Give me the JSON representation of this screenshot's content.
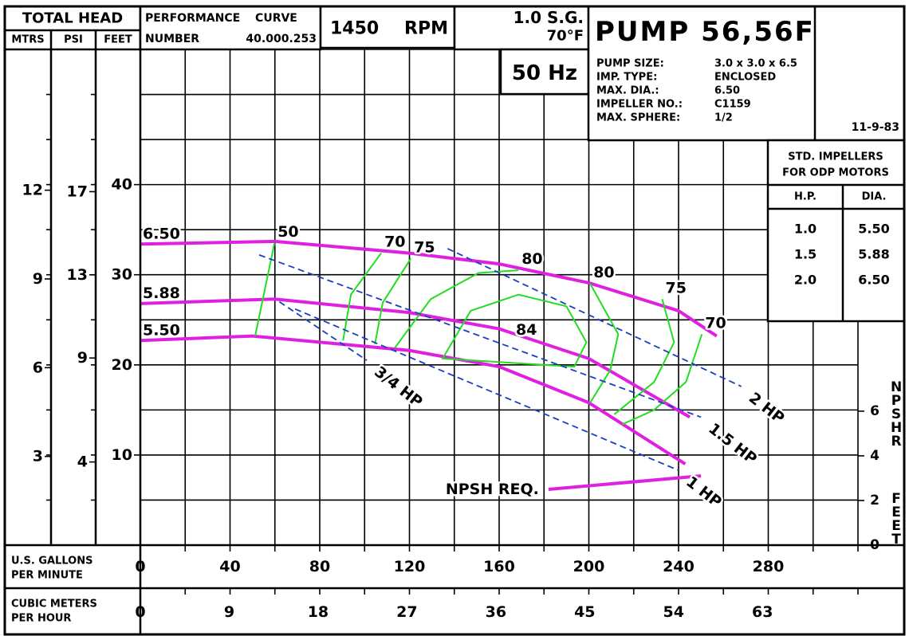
{
  "chart_data": {
    "type": "line",
    "title": "PUMP 56,56F",
    "head_label": "TOTAL HEAD",
    "performance_curve": "PERFORMANCE CURVE",
    "curve_number_label": "NUMBER",
    "curve_number": "40.000.253",
    "speed": "1450",
    "speed_unit": "RPM",
    "specific_gravity": "1.0 S.G.",
    "temperature": "70°F",
    "frequency": "50 Hz",
    "specs": [
      [
        "PUMP SIZE:",
        "3.0 x 3.0 x 6.5"
      ],
      [
        "IMP. TYPE:",
        "ENCLOSED"
      ],
      [
        "MAX. DIA.:",
        "6.50"
      ],
      [
        "IMPELLER NO.:",
        "C1159"
      ],
      [
        "MAX. SPHERE:",
        "1/2"
      ]
    ],
    "date": "11-9-83",
    "impeller_table": {
      "title": [
        "STD.  IMPELLERS",
        "FOR ODP MOTORS"
      ],
      "columns": [
        "H.P.",
        "DIA."
      ],
      "rows": [
        [
          "1.0",
          "5.50"
        ],
        [
          "1.5",
          "5.88"
        ],
        [
          "2.0",
          "6.50"
        ]
      ]
    },
    "y_axes": [
      {
        "label": "MTRS",
        "ylim": [
          0,
          16.76
        ],
        "yticks": [
          3,
          6,
          9,
          12
        ]
      },
      {
        "label": "PSI",
        "ylim": [
          0,
          23.84
        ],
        "yticks": [
          4,
          9,
          13,
          17
        ]
      },
      {
        "label": "FEET",
        "ylim": [
          0,
          55
        ],
        "yticks": [
          10,
          20,
          30,
          40
        ]
      }
    ],
    "x_axes": [
      {
        "label": [
          "U.S.  GALLONS",
          "PER  MINUTE"
        ],
        "xlim": [
          0,
          320
        ],
        "xticks": [
          0,
          40,
          80,
          120,
          160,
          200,
          240,
          280
        ]
      },
      {
        "label": [
          "CUBIC METERS",
          "PER HOUR"
        ],
        "xlim": [
          0,
          72.67
        ],
        "xticks": [
          0,
          9,
          18,
          27,
          36,
          45,
          54,
          63
        ]
      }
    ],
    "grid": true,
    "xgrid": [
      20,
      40,
      60,
      80,
      100,
      120,
      140,
      160,
      180,
      200,
      220,
      240,
      260,
      280,
      300,
      320
    ],
    "ygrid": [
      5,
      10,
      15,
      20,
      25,
      30,
      35,
      40,
      45,
      50,
      55
    ],
    "y2label": [
      "NPSHR",
      "FEET"
    ],
    "y2lim": [
      0,
      22.2
    ],
    "y2ticks": [
      0,
      2,
      4,
      6
    ],
    "series": [
      {
        "name": "6.50",
        "color": "#e020e0",
        "x": [
          0,
          60,
          120,
          160,
          200,
          240,
          257
        ],
        "values": [
          33.4,
          33.7,
          32.4,
          31.2,
          29.1,
          26,
          23.2
        ]
      },
      {
        "name": "5.88",
        "color": "#e020e0",
        "x": [
          0,
          60,
          120,
          160,
          200,
          245
        ],
        "values": [
          26.8,
          27.3,
          25.8,
          24,
          20.7,
          14.2
        ]
      },
      {
        "name": "5.50",
        "color": "#e020e0",
        "x": [
          0,
          50,
          120,
          160,
          200,
          243
        ],
        "values": [
          22.7,
          23.2,
          21.6,
          19.8,
          15.8,
          9
        ]
      },
      {
        "name": "NPSH REQ.",
        "color": "#e020e0",
        "axis": "y2",
        "x": [
          182,
          250
        ],
        "values": [
          2.5,
          3.1
        ]
      }
    ],
    "efficiency_curves": [
      {
        "name": "50",
        "color": "#22dd22",
        "x": [
          59.8,
          51.2
        ],
        "values": [
          33.5,
          23.2
        ]
      },
      {
        "name": "70",
        "color": "#22dd22",
        "x": [
          107.4,
          93.9,
          90.4
        ],
        "values": [
          32.4,
          27.8,
          22.7
        ]
      },
      {
        "name": "75",
        "color": "#22dd22",
        "x": [
          120.6,
          108.1,
          104.6
        ],
        "values": [
          31.8,
          26.9,
          22.3
        ]
      },
      {
        "name": "80",
        "color": "#22dd22",
        "x": [
          168.6,
          150.8,
          129.5,
          113.5
        ],
        "values": [
          30.5,
          30.2,
          27.3,
          21.9
        ]
      },
      {
        "name": "80",
        "color": "#22dd22",
        "x": [
          200.6,
          213.1,
          209.5,
          200.6
        ],
        "values": [
          29,
          23.4,
          19.4,
          15.8
        ]
      },
      {
        "name": "75",
        "color": "#22dd22",
        "x": [
          232.7,
          238,
          229.1,
          211.3
        ],
        "values": [
          27.3,
          22.5,
          18.1,
          14.5
        ]
      },
      {
        "name": "70",
        "color": "#22dd22",
        "x": [
          250.4,
          243.3,
          229.1,
          214.9
        ],
        "values": [
          23.4,
          18.1,
          15,
          13.4
        ]
      },
      {
        "name": "84",
        "color": "#22dd22",
        "closed": true,
        "x": [
          134.8,
          147.3,
          168.6,
          190,
          198.9,
          193.5
        ],
        "values": [
          20.7,
          26,
          27.8,
          26.5,
          22.5,
          19.8
        ]
      }
    ],
    "power_lines": [
      {
        "name": "3/4 HP",
        "color": "#1a3fbf",
        "x": [
          62,
          101
        ],
        "values": [
          27,
          20.5
        ]
      },
      {
        "name": "1 HP",
        "color": "#1a3fbf",
        "x": [
          69,
          240
        ],
        "values": [
          26.2,
          8.3
        ]
      },
      {
        "name": "1.5 HP",
        "color": "#1a3fbf",
        "x": [
          53,
          250
        ],
        "values": [
          32.2,
          14.2
        ]
      },
      {
        "name": "2 HP",
        "color": "#1a3fbf",
        "x": [
          137,
          268
        ],
        "values": [
          32.9,
          17.6
        ]
      }
    ]
  }
}
